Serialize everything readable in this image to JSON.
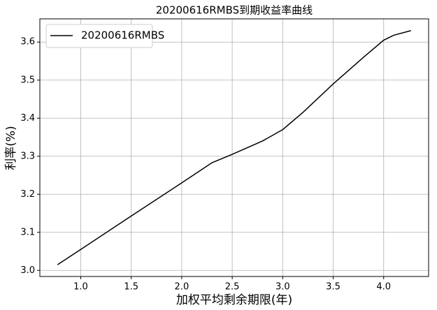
{
  "chart_data": {
    "type": "line",
    "title": "20200616RMBS到期收益率曲线",
    "xlabel": "加权平均剩余期限(年)",
    "ylabel": "利率(%)",
    "x": [
      0.77,
      1.0,
      1.5,
      2.0,
      2.3,
      2.5,
      2.8,
      3.0,
      3.2,
      3.5,
      3.8,
      4.0,
      4.1,
      4.27
    ],
    "series": [
      {
        "name": "20200616RMBS",
        "color": "#000000",
        "values": [
          3.015,
          3.055,
          3.143,
          3.23,
          3.283,
          3.305,
          3.34,
          3.37,
          3.415,
          3.49,
          3.56,
          3.605,
          3.618,
          3.63
        ]
      }
    ],
    "xlim": [
      0.595,
      4.445
    ],
    "xticks": [
      1.0,
      1.5,
      2.0,
      2.5,
      3.0,
      3.5,
      4.0
    ],
    "ylim": [
      2.984,
      3.661
    ],
    "yticks": [
      3.0,
      3.1,
      3.2,
      3.3,
      3.4,
      3.5,
      3.6
    ],
    "grid": true,
    "legend": "upper left"
  }
}
